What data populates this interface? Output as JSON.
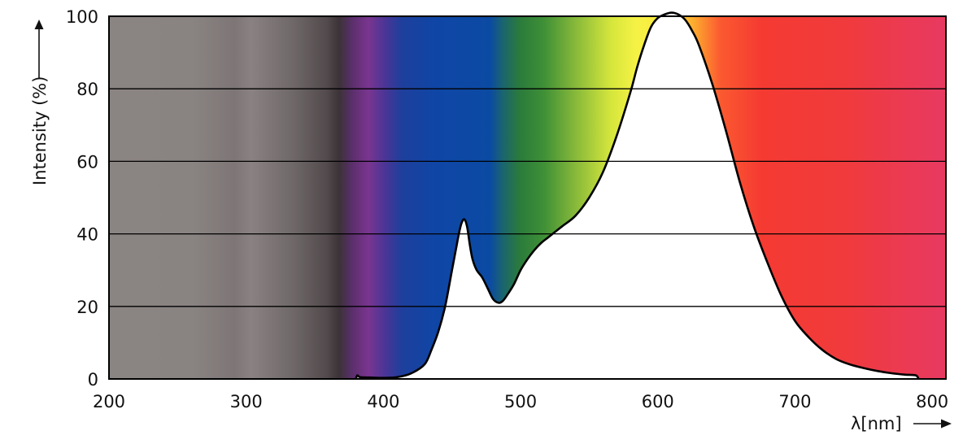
{
  "chart_data": {
    "type": "area",
    "title": "",
    "xlabel": "λ[nm]",
    "ylabel": "Intensity (%)",
    "xlim": [
      200,
      810
    ],
    "ylim": [
      0,
      100
    ],
    "x_ticks": [
      200,
      300,
      400,
      500,
      600,
      700,
      800
    ],
    "y_ticks": [
      0,
      20,
      40,
      60,
      80,
      100
    ],
    "grid": true,
    "background": "visible-spectrum gradient (gray UV region to red IR region)",
    "series": [
      {
        "color": "#000000",
        "fill": "#ffffff",
        "x": [
          380,
          381,
          383,
          390,
          400,
          410,
          420,
          430,
          435,
          440,
          445,
          450,
          453,
          455,
          457,
          459,
          461,
          463,
          465,
          468,
          472,
          476,
          480,
          484,
          487,
          490,
          495,
          500,
          505,
          510,
          515,
          520,
          530,
          540,
          550,
          560,
          570,
          580,
          585,
          590,
          595,
          600,
          605,
          610,
          615,
          620,
          625,
          630,
          640,
          650,
          660,
          670,
          680,
          690,
          700,
          710,
          720,
          730,
          740,
          750,
          760,
          770,
          780,
          788,
          790
        ],
        "y": [
          0,
          1,
          0.5,
          0.4,
          0.3,
          0.5,
          1.5,
          4,
          8,
          13,
          20,
          30,
          36,
          40,
          43,
          44,
          42,
          37,
          33,
          30,
          28,
          25,
          22,
          21,
          21.5,
          23,
          26,
          30,
          33,
          35.5,
          37.5,
          39,
          42,
          45,
          50,
          57,
          67,
          79,
          86,
          92,
          97,
          99.5,
          100.5,
          101,
          100.5,
          99,
          96,
          92,
          81,
          68,
          54,
          42,
          32,
          23,
          16,
          11.5,
          8,
          5.5,
          4,
          3,
          2.2,
          1.6,
          1.2,
          1,
          0
        ]
      }
    ]
  }
}
